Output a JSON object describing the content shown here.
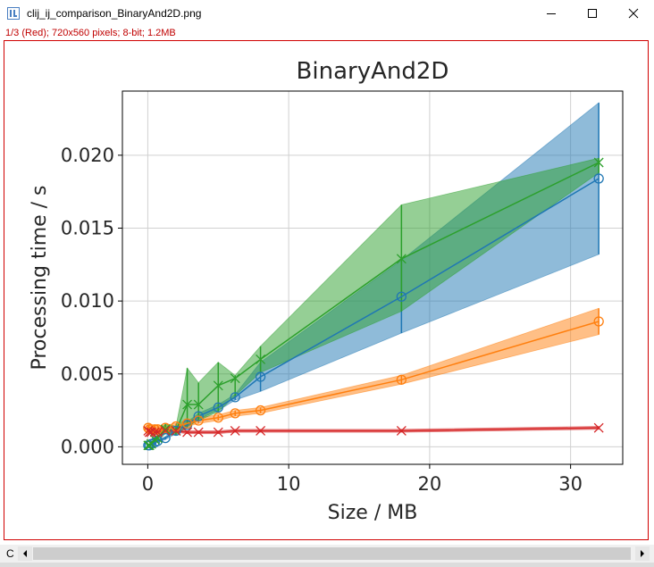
{
  "window": {
    "title": "clij_ij_comparison_BinaryAnd2D.png",
    "info": "1/3 (Red); 720x560 pixels; 8-bit; 1.2MB",
    "minimize_icon": "minimize-icon",
    "maximize_icon": "maximize-icon",
    "close_icon": "close-icon"
  },
  "scrollbar": {
    "channel_label": "C"
  },
  "colors": {
    "blue": "#1f77b4",
    "orange": "#ff7f0e",
    "green": "#2ca02c",
    "red": "#d62728",
    "frame": "#d00000"
  },
  "chart_data": {
    "type": "line",
    "title": "BinaryAnd2D",
    "xlabel": "Size / MB",
    "ylabel": "Processing time / s",
    "xlim": [
      -1.8,
      33.7
    ],
    "ylim": [
      -0.0012,
      0.0244
    ],
    "xticks": [
      0,
      10,
      20,
      30
    ],
    "xtick_labels": [
      "0",
      "10",
      "20",
      "30"
    ],
    "yticks": [
      0.0,
      0.005,
      0.01,
      0.015,
      0.02
    ],
    "ytick_labels": [
      "0.000",
      "0.005",
      "0.010",
      "0.015",
      "0.020"
    ],
    "grid": true,
    "legend": "none",
    "x": [
      0.03,
      0.12,
      0.25,
      0.5,
      0.7,
      1.25,
      2.0,
      2.8,
      3.6,
      5.0,
      6.2,
      8.0,
      18.0,
      32.0
    ],
    "series": [
      {
        "color": "#1f77b4",
        "marker": "circle",
        "values": [
          0.0001,
          0.0001,
          0.0002,
          0.0003,
          0.0004,
          0.0006,
          0.0011,
          0.0015,
          0.0021,
          0.0027,
          0.0034,
          0.0048,
          0.0103,
          0.0184
        ],
        "lower": [
          0.0,
          0.0,
          0.0001,
          0.0002,
          0.0003,
          0.0005,
          0.0009,
          0.0013,
          0.0019,
          0.0025,
          0.0032,
          0.0038,
          0.0078,
          0.0132
        ],
        "upper": [
          0.0002,
          0.0002,
          0.0003,
          0.0004,
          0.0005,
          0.0007,
          0.0013,
          0.0017,
          0.0023,
          0.0029,
          0.0036,
          0.0058,
          0.0128,
          0.0236
        ]
      },
      {
        "color": "#ff7f0e",
        "marker": "circle",
        "values": [
          0.0013,
          0.0012,
          0.0012,
          0.0012,
          0.0012,
          0.0013,
          0.0014,
          0.0016,
          0.0018,
          0.002,
          0.0023,
          0.0025,
          0.0046,
          0.0086
        ],
        "lower": [
          0.0011,
          0.001,
          0.001,
          0.001,
          0.001,
          0.0011,
          0.0012,
          0.0014,
          0.0016,
          0.0018,
          0.0021,
          0.0023,
          0.0043,
          0.0077
        ],
        "upper": [
          0.0015,
          0.0014,
          0.0014,
          0.0014,
          0.0014,
          0.0015,
          0.0016,
          0.0018,
          0.002,
          0.0022,
          0.0025,
          0.0027,
          0.0049,
          0.0095
        ]
      },
      {
        "color": "#2ca02c",
        "marker": "x",
        "values": [
          0.0001,
          0.0001,
          0.0002,
          0.0005,
          0.0006,
          0.0012,
          0.0011,
          0.0029,
          0.0029,
          0.0042,
          0.0047,
          0.006,
          0.0129,
          0.0195
        ],
        "lower": [
          0.0,
          0.0,
          0.0001,
          0.0003,
          0.0004,
          0.0009,
          0.0008,
          0.0014,
          0.0018,
          0.0024,
          0.0035,
          0.0051,
          0.0093,
          0.0188
        ],
        "upper": [
          0.0002,
          0.0002,
          0.0003,
          0.0007,
          0.0008,
          0.0016,
          0.0014,
          0.0054,
          0.0044,
          0.0058,
          0.0049,
          0.0069,
          0.0166,
          0.0198
        ]
      },
      {
        "color": "#d62728",
        "marker": "x",
        "values": [
          0.0011,
          0.001,
          0.001,
          0.001,
          0.001,
          0.0011,
          0.0011,
          0.001,
          0.001,
          0.001,
          0.0011,
          0.0011,
          0.0011,
          0.0013
        ],
        "lower": [
          0.001,
          0.0009,
          0.0009,
          0.0009,
          0.0009,
          0.001,
          0.001,
          0.0009,
          0.0009,
          0.0009,
          0.001,
          0.001,
          0.001,
          0.0012
        ],
        "upper": [
          0.0012,
          0.0011,
          0.0011,
          0.0011,
          0.0011,
          0.0012,
          0.0012,
          0.0011,
          0.0011,
          0.0011,
          0.0012,
          0.0012,
          0.0012,
          0.0014
        ]
      }
    ]
  }
}
